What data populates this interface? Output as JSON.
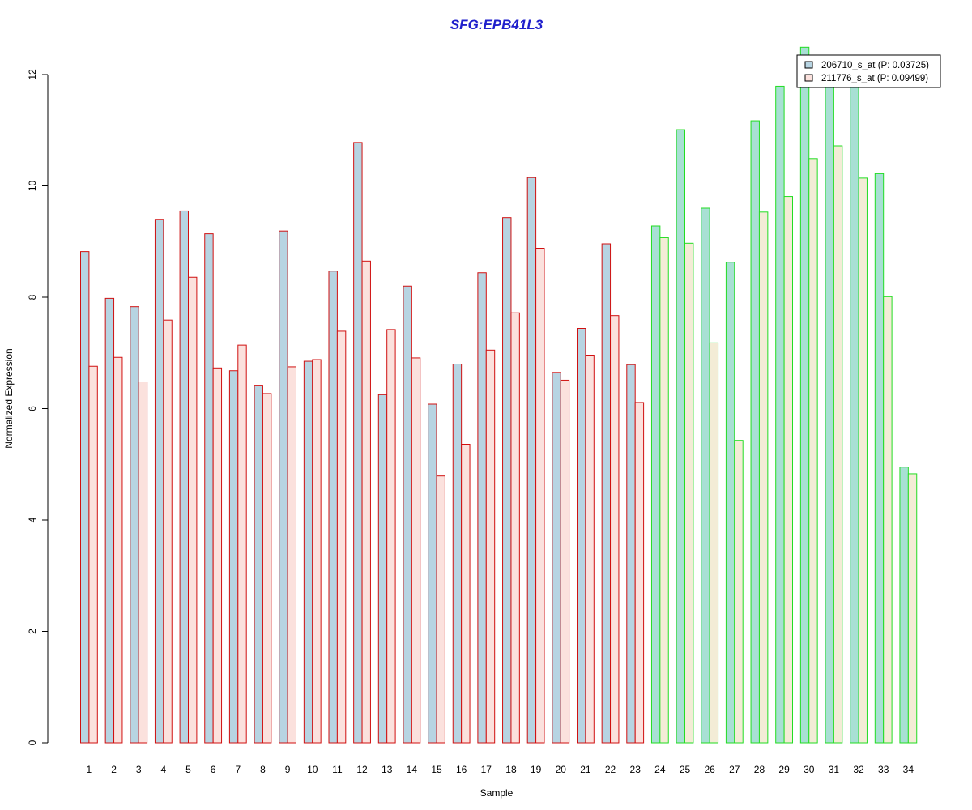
{
  "chart_data": {
    "type": "bar",
    "title": "SFG:EPB41L3",
    "xlabel": "Sample",
    "ylabel": "Normalized Expression",
    "ylim": [
      0,
      12
    ],
    "yticks": [
      "0",
      "2",
      "4",
      "6",
      "8",
      "10",
      "12"
    ],
    "categories": [
      "1",
      "2",
      "3",
      "4",
      "5",
      "6",
      "7",
      "8",
      "9",
      "10",
      "11",
      "12",
      "13",
      "14",
      "15",
      "16",
      "17",
      "18",
      "19",
      "20",
      "21",
      "22",
      "23",
      "24",
      "25",
      "26",
      "27",
      "28",
      "29",
      "30",
      "31",
      "32",
      "33",
      "34"
    ],
    "series": [
      {
        "name": "206710_s_at (P: 0.03725)",
        "values": [
          8.82,
          7.98,
          7.83,
          9.4,
          9.55,
          9.14,
          6.68,
          6.42,
          9.19,
          6.85,
          8.47,
          10.78,
          6.25,
          8.2,
          6.08,
          6.8,
          8.44,
          9.43,
          10.15,
          6.65,
          7.44,
          8.96,
          6.79,
          9.28,
          11.01,
          9.6,
          8.63,
          11.17,
          11.79,
          12.49,
          11.9,
          11.8,
          10.22,
          4.95
        ]
      },
      {
        "name": "211776_s_at (P: 0.09499)",
        "values": [
          6.76,
          6.92,
          6.48,
          7.59,
          8.36,
          6.73,
          7.14,
          6.27,
          6.75,
          6.88,
          7.39,
          8.65,
          7.42,
          6.91,
          4.79,
          5.36,
          7.05,
          7.72,
          8.88,
          6.51,
          6.96,
          7.67,
          6.11,
          9.07,
          8.97,
          7.18,
          5.43,
          9.53,
          9.81,
          10.49,
          10.72,
          10.14,
          8.01,
          4.83
        ]
      }
    ],
    "group_split_index": 23,
    "grid": false,
    "legend_position": "top-right",
    "colors": {
      "title": "#1f1fcc",
      "series1_fill": "#b7d4e2",
      "series2_fill": "#fbe1dd",
      "group1_border": "#d01010",
      "group2_series1_fill": "#a8e0d4",
      "group2_series2_fill": "#f3ecd6",
      "group2_border": "#22dd22",
      "legend_swatch1": "#b7d4e2",
      "legend_swatch2": "#fbe1dd"
    }
  }
}
